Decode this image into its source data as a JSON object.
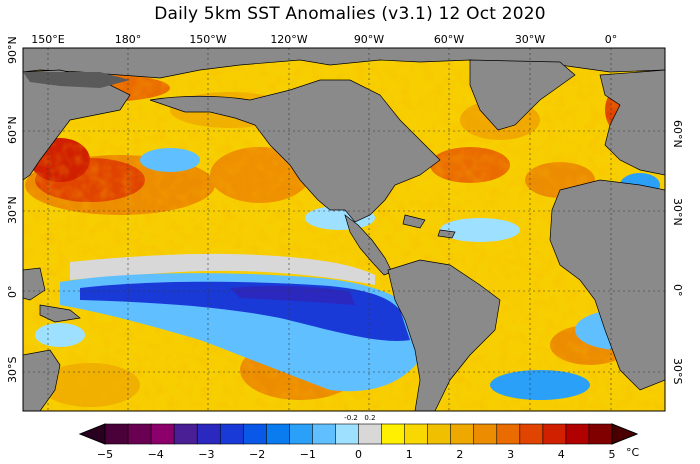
{
  "title": "Daily 5km SST Anomalies  (v3.1)    12 Oct 2020",
  "map": {
    "lon_labels": [
      "150°E",
      "180°",
      "150°W",
      "120°W",
      "90°W",
      "60°W",
      "30°W",
      "0°"
    ],
    "lat_labels_left": [
      "90°N",
      "60°N",
      "30°N",
      "0°",
      "30°S"
    ],
    "lat_labels_right": [
      "60°N",
      "30°N",
      "0°",
      "30°S"
    ],
    "colors": {
      "land": "#8a8a8a",
      "ice": "#5a5a5a",
      "ocean_warm": "#f7cf00",
      "ocean_cool": "#1e6cff"
    }
  },
  "colorbar": {
    "ticks": [
      "−5",
      "−4",
      "−3",
      "−2",
      "−1",
      "0",
      "1",
      "2",
      "3",
      "4",
      "5"
    ],
    "small_ticks": [
      "-0.2",
      "0.2"
    ],
    "unit": "°C",
    "colors": [
      "#4a0038",
      "#6a0052",
      "#8c006c",
      "#4a1f96",
      "#2b28c0",
      "#1a3ad8",
      "#0a58e8",
      "#0a7cf0",
      "#2aa0f8",
      "#60c0ff",
      "#9ee0ff",
      "#d8d8d8",
      "#fff000",
      "#f8d800",
      "#f0c000",
      "#eea800",
      "#ec8c00",
      "#ea6c00",
      "#e04400",
      "#d02000",
      "#b00000",
      "#800000"
    ]
  }
}
